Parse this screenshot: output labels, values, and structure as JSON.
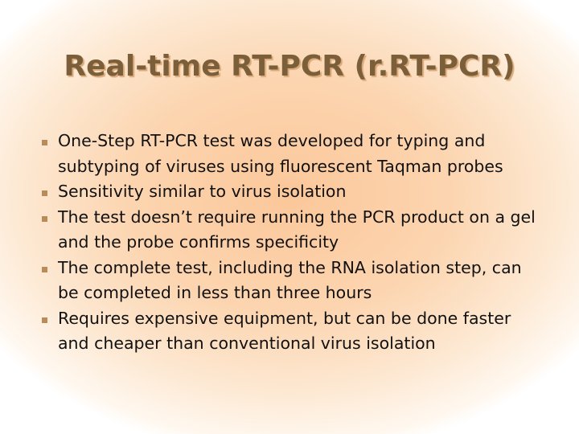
{
  "title": "Real-time RT-PCR (r.RT-PCR)",
  "bullets": [
    "One-Step RT-PCR test was developed for typing and subtyping of viruses using fluorescent Taqman probes",
    "Sensitivity similar to virus isolation",
    "The test doesn’t require running the PCR product on a gel and the probe confirms specificity",
    "The complete test, including the RNA isolation step, can be completed in less than three hours",
    "Requires expensive equipment, but can be done faster and cheaper than conventional virus isolation"
  ]
}
